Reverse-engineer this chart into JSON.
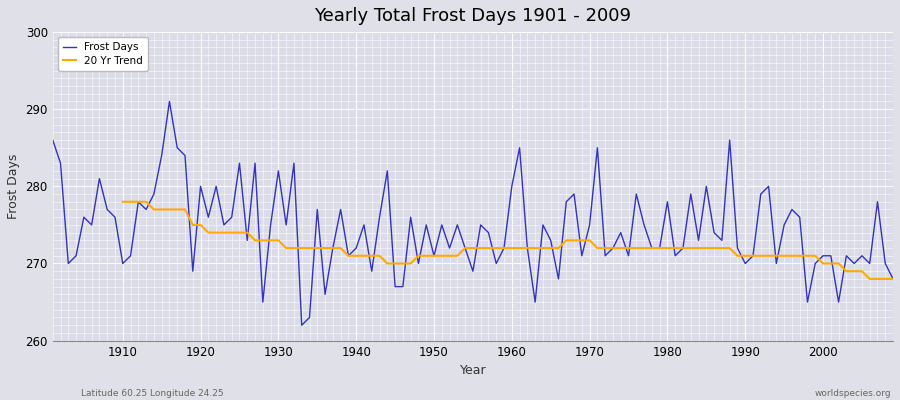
{
  "title": "Yearly Total Frost Days 1901 - 2009",
  "xlabel": "Year",
  "ylabel": "Frost Days",
  "footnote_left": "Latitude 60.25 Longitude 24.25",
  "footnote_right": "worldspecies.org",
  "line_color": "#3333bb",
  "trend_color": "#ffaa00",
  "bg_color": "#e0e0e8",
  "plot_bg": "#dcdce8",
  "grid_color_major": "#c0c0d0",
  "grid_color_minor": "#d0d0de",
  "ylim": [
    260,
    300
  ],
  "xlim": [
    1901,
    2009
  ],
  "years": [
    1901,
    1902,
    1903,
    1904,
    1905,
    1906,
    1907,
    1908,
    1909,
    1910,
    1911,
    1912,
    1913,
    1914,
    1915,
    1916,
    1917,
    1918,
    1919,
    1920,
    1921,
    1922,
    1923,
    1924,
    1925,
    1926,
    1927,
    1928,
    1929,
    1930,
    1931,
    1932,
    1933,
    1934,
    1935,
    1936,
    1937,
    1938,
    1939,
    1940,
    1941,
    1942,
    1943,
    1944,
    1945,
    1946,
    1947,
    1948,
    1949,
    1950,
    1951,
    1952,
    1953,
    1954,
    1955,
    1956,
    1957,
    1958,
    1959,
    1960,
    1961,
    1962,
    1963,
    1964,
    1965,
    1966,
    1967,
    1968,
    1969,
    1970,
    1971,
    1972,
    1973,
    1974,
    1975,
    1976,
    1977,
    1978,
    1979,
    1980,
    1981,
    1982,
    1983,
    1984,
    1985,
    1986,
    1987,
    1988,
    1989,
    1990,
    1991,
    1992,
    1993,
    1994,
    1995,
    1996,
    1997,
    1998,
    1999,
    2000,
    2001,
    2002,
    2003,
    2004,
    2005,
    2006,
    2007,
    2008,
    2009
  ],
  "frost_days": [
    286,
    283,
    270,
    271,
    276,
    275,
    281,
    277,
    276,
    270,
    271,
    278,
    277,
    279,
    284,
    291,
    285,
    284,
    269,
    280,
    276,
    280,
    275,
    276,
    283,
    273,
    283,
    265,
    275,
    282,
    275,
    283,
    262,
    263,
    277,
    266,
    272,
    277,
    271,
    272,
    275,
    269,
    276,
    282,
    267,
    267,
    276,
    270,
    275,
    271,
    275,
    272,
    275,
    272,
    269,
    275,
    274,
    270,
    272,
    280,
    285,
    272,
    265,
    275,
    273,
    268,
    278,
    279,
    271,
    275,
    285,
    271,
    272,
    274,
    271,
    279,
    275,
    272,
    272,
    278,
    271,
    272,
    279,
    273,
    280,
    274,
    273,
    286,
    272,
    270,
    271,
    279,
    280,
    270,
    275,
    277,
    276,
    265,
    270,
    271,
    271,
    265,
    271,
    270,
    271,
    270,
    278,
    270,
    268
  ],
  "trend_years": [
    1910,
    1911,
    1912,
    1913,
    1914,
    1915,
    1916,
    1917,
    1918,
    1919,
    1920,
    1921,
    1922,
    1923,
    1924,
    1925,
    1926,
    1927,
    1928,
    1929,
    1930,
    1931,
    1932,
    1933,
    1934,
    1935,
    1936,
    1937,
    1938,
    1939,
    1940,
    1941,
    1942,
    1943,
    1944,
    1945,
    1946,
    1947,
    1948,
    1949,
    1950,
    1951,
    1952,
    1953,
    1954,
    1955,
    1956,
    1957,
    1958,
    1959,
    1960,
    1961,
    1962,
    1963,
    1964,
    1965,
    1966,
    1967,
    1968,
    1969,
    1970,
    1971,
    1972,
    1973,
    1974,
    1975,
    1976,
    1977,
    1978,
    1979,
    1980,
    1981,
    1982,
    1983,
    1984,
    1985,
    1986,
    1987,
    1988,
    1989,
    1990,
    1991,
    1992,
    1993,
    1994,
    1995,
    1996,
    1997,
    1998,
    1999,
    2000,
    2001,
    2002,
    2003,
    2004,
    2005,
    2006,
    2007,
    2008,
    2009
  ],
  "trend_values": [
    278,
    278,
    278,
    278,
    277,
    277,
    277,
    277,
    277,
    275,
    275,
    274,
    274,
    274,
    274,
    274,
    274,
    273,
    273,
    273,
    273,
    272,
    272,
    272,
    272,
    272,
    272,
    272,
    272,
    271,
    271,
    271,
    271,
    271,
    270,
    270,
    270,
    270,
    271,
    271,
    271,
    271,
    271,
    271,
    272,
    272,
    272,
    272,
    272,
    272,
    272,
    272,
    272,
    272,
    272,
    272,
    272,
    273,
    273,
    273,
    273,
    272,
    272,
    272,
    272,
    272,
    272,
    272,
    272,
    272,
    272,
    272,
    272,
    272,
    272,
    272,
    272,
    272,
    272,
    271,
    271,
    271,
    271,
    271,
    271,
    271,
    271,
    271,
    271,
    271,
    270,
    270,
    270,
    269,
    269,
    269,
    268,
    268,
    268,
    268
  ]
}
